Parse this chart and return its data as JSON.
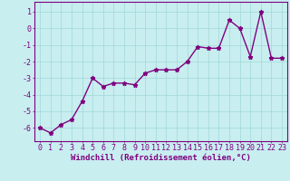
{
  "x": [
    0,
    1,
    2,
    3,
    4,
    5,
    6,
    7,
    8,
    9,
    10,
    11,
    12,
    13,
    14,
    15,
    16,
    17,
    18,
    19,
    20,
    21,
    22,
    23
  ],
  "y": [
    -6.0,
    -6.3,
    -5.8,
    -5.5,
    -4.4,
    -3.0,
    -3.5,
    -3.3,
    -3.3,
    -3.4,
    -2.7,
    -2.5,
    -2.5,
    -2.5,
    -2.0,
    -1.1,
    -1.2,
    -1.2,
    0.5,
    0.0,
    -1.7,
    1.0,
    -1.8,
    -1.8
  ],
  "line_color": "#800080",
  "marker": "*",
  "marker_size": 3.5,
  "bg_color": "#c8eef0",
  "grid_color": "#a0d8d8",
  "xlabel": "Windchill (Refroidissement éolien,°C)",
  "ylabel_ticks": [
    1,
    0,
    -1,
    -2,
    -3,
    -4,
    -5,
    -6
  ],
  "ylim": [
    -6.8,
    1.6
  ],
  "xlim": [
    -0.5,
    23.5
  ],
  "xlabel_fontsize": 6.5,
  "tick_fontsize": 6.0,
  "line_width": 1.0,
  "axis_color": "#800080"
}
